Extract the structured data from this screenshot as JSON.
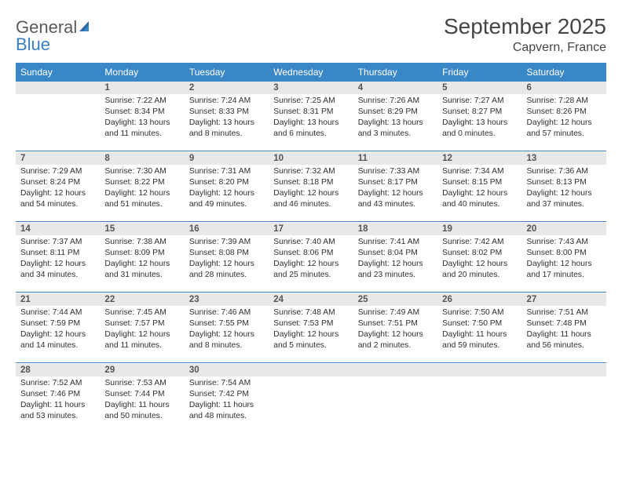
{
  "brand": {
    "part1": "General",
    "part2": "Blue"
  },
  "month_title": "September 2025",
  "location": "Capvern, France",
  "colors": {
    "header_bg": "#3a87c7",
    "accent": "#3a7fc4",
    "daynum_bg": "#e7e8e9",
    "text": "#2f2f2f",
    "title": "#454545"
  },
  "weekdays": [
    "Sunday",
    "Monday",
    "Tuesday",
    "Wednesday",
    "Thursday",
    "Friday",
    "Saturday"
  ],
  "weeks": [
    [
      {
        "n": "",
        "sr": "",
        "ss": "",
        "dl1": "",
        "dl2": ""
      },
      {
        "n": "1",
        "sr": "Sunrise: 7:22 AM",
        "ss": "Sunset: 8:34 PM",
        "dl1": "Daylight: 13 hours",
        "dl2": "and 11 minutes."
      },
      {
        "n": "2",
        "sr": "Sunrise: 7:24 AM",
        "ss": "Sunset: 8:33 PM",
        "dl1": "Daylight: 13 hours",
        "dl2": "and 8 minutes."
      },
      {
        "n": "3",
        "sr": "Sunrise: 7:25 AM",
        "ss": "Sunset: 8:31 PM",
        "dl1": "Daylight: 13 hours",
        "dl2": "and 6 minutes."
      },
      {
        "n": "4",
        "sr": "Sunrise: 7:26 AM",
        "ss": "Sunset: 8:29 PM",
        "dl1": "Daylight: 13 hours",
        "dl2": "and 3 minutes."
      },
      {
        "n": "5",
        "sr": "Sunrise: 7:27 AM",
        "ss": "Sunset: 8:27 PM",
        "dl1": "Daylight: 13 hours",
        "dl2": "and 0 minutes."
      },
      {
        "n": "6",
        "sr": "Sunrise: 7:28 AM",
        "ss": "Sunset: 8:26 PM",
        "dl1": "Daylight: 12 hours",
        "dl2": "and 57 minutes."
      }
    ],
    [
      {
        "n": "7",
        "sr": "Sunrise: 7:29 AM",
        "ss": "Sunset: 8:24 PM",
        "dl1": "Daylight: 12 hours",
        "dl2": "and 54 minutes."
      },
      {
        "n": "8",
        "sr": "Sunrise: 7:30 AM",
        "ss": "Sunset: 8:22 PM",
        "dl1": "Daylight: 12 hours",
        "dl2": "and 51 minutes."
      },
      {
        "n": "9",
        "sr": "Sunrise: 7:31 AM",
        "ss": "Sunset: 8:20 PM",
        "dl1": "Daylight: 12 hours",
        "dl2": "and 49 minutes."
      },
      {
        "n": "10",
        "sr": "Sunrise: 7:32 AM",
        "ss": "Sunset: 8:18 PM",
        "dl1": "Daylight: 12 hours",
        "dl2": "and 46 minutes."
      },
      {
        "n": "11",
        "sr": "Sunrise: 7:33 AM",
        "ss": "Sunset: 8:17 PM",
        "dl1": "Daylight: 12 hours",
        "dl2": "and 43 minutes."
      },
      {
        "n": "12",
        "sr": "Sunrise: 7:34 AM",
        "ss": "Sunset: 8:15 PM",
        "dl1": "Daylight: 12 hours",
        "dl2": "and 40 minutes."
      },
      {
        "n": "13",
        "sr": "Sunrise: 7:36 AM",
        "ss": "Sunset: 8:13 PM",
        "dl1": "Daylight: 12 hours",
        "dl2": "and 37 minutes."
      }
    ],
    [
      {
        "n": "14",
        "sr": "Sunrise: 7:37 AM",
        "ss": "Sunset: 8:11 PM",
        "dl1": "Daylight: 12 hours",
        "dl2": "and 34 minutes."
      },
      {
        "n": "15",
        "sr": "Sunrise: 7:38 AM",
        "ss": "Sunset: 8:09 PM",
        "dl1": "Daylight: 12 hours",
        "dl2": "and 31 minutes."
      },
      {
        "n": "16",
        "sr": "Sunrise: 7:39 AM",
        "ss": "Sunset: 8:08 PM",
        "dl1": "Daylight: 12 hours",
        "dl2": "and 28 minutes."
      },
      {
        "n": "17",
        "sr": "Sunrise: 7:40 AM",
        "ss": "Sunset: 8:06 PM",
        "dl1": "Daylight: 12 hours",
        "dl2": "and 25 minutes."
      },
      {
        "n": "18",
        "sr": "Sunrise: 7:41 AM",
        "ss": "Sunset: 8:04 PM",
        "dl1": "Daylight: 12 hours",
        "dl2": "and 23 minutes."
      },
      {
        "n": "19",
        "sr": "Sunrise: 7:42 AM",
        "ss": "Sunset: 8:02 PM",
        "dl1": "Daylight: 12 hours",
        "dl2": "and 20 minutes."
      },
      {
        "n": "20",
        "sr": "Sunrise: 7:43 AM",
        "ss": "Sunset: 8:00 PM",
        "dl1": "Daylight: 12 hours",
        "dl2": "and 17 minutes."
      }
    ],
    [
      {
        "n": "21",
        "sr": "Sunrise: 7:44 AM",
        "ss": "Sunset: 7:59 PM",
        "dl1": "Daylight: 12 hours",
        "dl2": "and 14 minutes."
      },
      {
        "n": "22",
        "sr": "Sunrise: 7:45 AM",
        "ss": "Sunset: 7:57 PM",
        "dl1": "Daylight: 12 hours",
        "dl2": "and 11 minutes."
      },
      {
        "n": "23",
        "sr": "Sunrise: 7:46 AM",
        "ss": "Sunset: 7:55 PM",
        "dl1": "Daylight: 12 hours",
        "dl2": "and 8 minutes."
      },
      {
        "n": "24",
        "sr": "Sunrise: 7:48 AM",
        "ss": "Sunset: 7:53 PM",
        "dl1": "Daylight: 12 hours",
        "dl2": "and 5 minutes."
      },
      {
        "n": "25",
        "sr": "Sunrise: 7:49 AM",
        "ss": "Sunset: 7:51 PM",
        "dl1": "Daylight: 12 hours",
        "dl2": "and 2 minutes."
      },
      {
        "n": "26",
        "sr": "Sunrise: 7:50 AM",
        "ss": "Sunset: 7:50 PM",
        "dl1": "Daylight: 11 hours",
        "dl2": "and 59 minutes."
      },
      {
        "n": "27",
        "sr": "Sunrise: 7:51 AM",
        "ss": "Sunset: 7:48 PM",
        "dl1": "Daylight: 11 hours",
        "dl2": "and 56 minutes."
      }
    ],
    [
      {
        "n": "28",
        "sr": "Sunrise: 7:52 AM",
        "ss": "Sunset: 7:46 PM",
        "dl1": "Daylight: 11 hours",
        "dl2": "and 53 minutes."
      },
      {
        "n": "29",
        "sr": "Sunrise: 7:53 AM",
        "ss": "Sunset: 7:44 PM",
        "dl1": "Daylight: 11 hours",
        "dl2": "and 50 minutes."
      },
      {
        "n": "30",
        "sr": "Sunrise: 7:54 AM",
        "ss": "Sunset: 7:42 PM",
        "dl1": "Daylight: 11 hours",
        "dl2": "and 48 minutes."
      },
      {
        "n": "",
        "sr": "",
        "ss": "",
        "dl1": "",
        "dl2": ""
      },
      {
        "n": "",
        "sr": "",
        "ss": "",
        "dl1": "",
        "dl2": ""
      },
      {
        "n": "",
        "sr": "",
        "ss": "",
        "dl1": "",
        "dl2": ""
      },
      {
        "n": "",
        "sr": "",
        "ss": "",
        "dl1": "",
        "dl2": ""
      }
    ]
  ]
}
